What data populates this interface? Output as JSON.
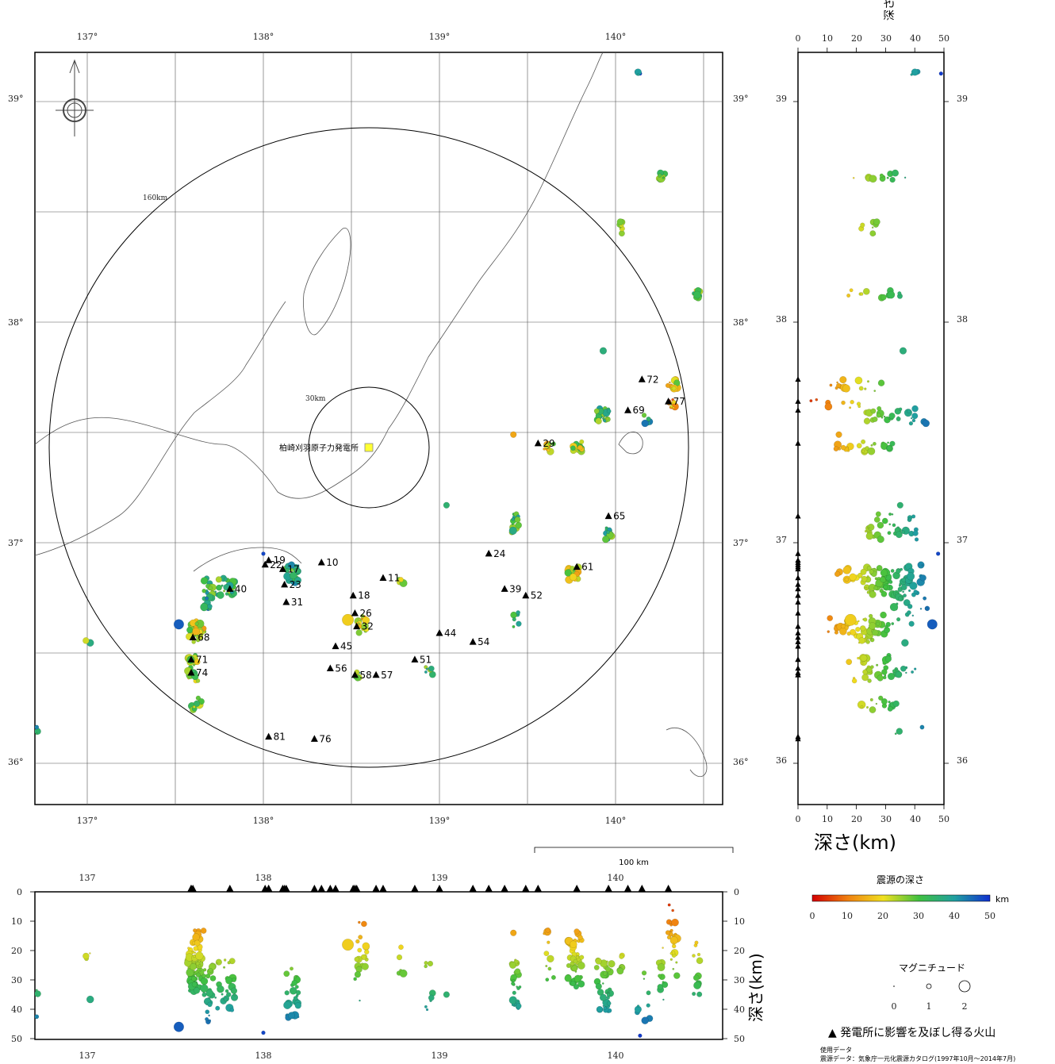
{
  "map": {
    "lon_ticks": [
      "137°",
      "138°",
      "139°",
      "140°"
    ],
    "lat_ticks": [
      "36°",
      "37°",
      "38°",
      "39°"
    ],
    "radius_outer_label": "160km",
    "radius_inner_label": "30km",
    "plant_label": "柏崎刈羽原子力発電所",
    "scale_label": "100 km",
    "volcanoes": [
      {
        "id": "19",
        "lon": 138.03,
        "lat": 36.92
      },
      {
        "id": "22",
        "lon": 138.01,
        "lat": 36.9
      },
      {
        "id": "17",
        "lon": 138.11,
        "lat": 36.88
      },
      {
        "id": "23",
        "lon": 138.12,
        "lat": 36.81
      },
      {
        "id": "10",
        "lon": 138.33,
        "lat": 36.91
      },
      {
        "id": "40",
        "lon": 137.81,
        "lat": 36.79
      },
      {
        "id": "31",
        "lon": 138.13,
        "lat": 36.73
      },
      {
        "id": "11",
        "lon": 138.68,
        "lat": 36.84
      },
      {
        "id": "18",
        "lon": 138.51,
        "lat": 36.76
      },
      {
        "id": "26",
        "lon": 138.52,
        "lat": 36.68
      },
      {
        "id": "32",
        "lon": 138.53,
        "lat": 36.62
      },
      {
        "id": "45",
        "lon": 138.41,
        "lat": 36.53
      },
      {
        "id": "44",
        "lon": 139.0,
        "lat": 36.59
      },
      {
        "id": "54",
        "lon": 139.19,
        "lat": 36.55
      },
      {
        "id": "51",
        "lon": 138.86,
        "lat": 36.47
      },
      {
        "id": "56",
        "lon": 138.38,
        "lat": 36.43
      },
      {
        "id": "58",
        "lon": 138.52,
        "lat": 36.4
      },
      {
        "id": "57",
        "lon": 138.64,
        "lat": 36.4
      },
      {
        "id": "68",
        "lon": 137.6,
        "lat": 36.57
      },
      {
        "id": "71",
        "lon": 137.59,
        "lat": 36.47
      },
      {
        "id": "74",
        "lon": 137.59,
        "lat": 36.41
      },
      {
        "id": "81",
        "lon": 138.03,
        "lat": 36.12
      },
      {
        "id": "76",
        "lon": 138.29,
        "lat": 36.11
      },
      {
        "id": "24",
        "lon": 139.28,
        "lat": 36.95
      },
      {
        "id": "39",
        "lon": 139.37,
        "lat": 36.79
      },
      {
        "id": "52",
        "lon": 139.49,
        "lat": 36.76
      },
      {
        "id": "61",
        "lon": 139.78,
        "lat": 36.89
      },
      {
        "id": "65",
        "lon": 139.96,
        "lat": 37.12
      },
      {
        "id": "29",
        "lon": 139.56,
        "lat": 37.45
      },
      {
        "id": "69",
        "lon": 140.07,
        "lat": 37.6
      },
      {
        "id": "72",
        "lon": 140.15,
        "lat": 37.74
      },
      {
        "id": "77",
        "lon": 140.3,
        "lat": 37.64
      }
    ],
    "clusters": [
      {
        "lon": 137.62,
        "lat": 36.6,
        "depth": 22,
        "n": 40,
        "rx": 0.05,
        "ry": 0.05
      },
      {
        "lon": 137.6,
        "lat": 36.43,
        "depth": 26,
        "n": 25,
        "rx": 0.03,
        "ry": 0.06
      },
      {
        "lon": 137.62,
        "lat": 36.27,
        "depth": 30,
        "n": 14,
        "rx": 0.03,
        "ry": 0.03
      },
      {
        "lon": 137.75,
        "lat": 36.8,
        "depth": 32,
        "n": 40,
        "rx": 0.09,
        "ry": 0.04
      },
      {
        "lon": 137.69,
        "lat": 36.73,
        "depth": 36,
        "n": 12,
        "rx": 0.03,
        "ry": 0.03
      },
      {
        "lon": 138.16,
        "lat": 36.86,
        "depth": 35,
        "n": 25,
        "rx": 0.04,
        "ry": 0.04
      },
      {
        "lon": 138.56,
        "lat": 36.63,
        "depth": 18,
        "n": 18,
        "rx": 0.03,
        "ry": 0.04
      },
      {
        "lon": 138.54,
        "lat": 36.4,
        "depth": 30,
        "n": 6,
        "rx": 0.02,
        "ry": 0.02
      },
      {
        "lon": 138.78,
        "lat": 36.83,
        "depth": 26,
        "n": 5,
        "rx": 0.02,
        "ry": 0.02
      },
      {
        "lon": 138.95,
        "lat": 36.42,
        "depth": 33,
        "n": 8,
        "rx": 0.03,
        "ry": 0.02
      },
      {
        "lon": 139.43,
        "lat": 37.09,
        "depth": 32,
        "n": 20,
        "rx": 0.02,
        "ry": 0.05
      },
      {
        "lon": 139.44,
        "lat": 36.65,
        "depth": 36,
        "n": 8,
        "rx": 0.02,
        "ry": 0.04
      },
      {
        "lon": 139.76,
        "lat": 36.86,
        "depth": 22,
        "n": 25,
        "rx": 0.03,
        "ry": 0.03
      },
      {
        "lon": 139.96,
        "lat": 37.04,
        "depth": 33,
        "n": 15,
        "rx": 0.02,
        "ry": 0.03
      },
      {
        "lon": 139.62,
        "lat": 37.43,
        "depth": 22,
        "n": 10,
        "rx": 0.03,
        "ry": 0.02
      },
      {
        "lon": 139.78,
        "lat": 37.44,
        "depth": 24,
        "n": 15,
        "rx": 0.03,
        "ry": 0.03
      },
      {
        "lon": 139.93,
        "lat": 37.58,
        "depth": 32,
        "n": 25,
        "rx": 0.04,
        "ry": 0.03
      },
      {
        "lon": 140.18,
        "lat": 37.56,
        "depth": 36,
        "n": 6,
        "rx": 0.02,
        "ry": 0.02
      },
      {
        "lon": 140.32,
        "lat": 37.71,
        "depth": 20,
        "n": 15,
        "rx": 0.03,
        "ry": 0.03
      },
      {
        "lon": 140.32,
        "lat": 37.63,
        "depth": 12,
        "n": 10,
        "rx": 0.02,
        "ry": 0.02
      },
      {
        "lon": 140.03,
        "lat": 38.43,
        "depth": 22,
        "n": 8,
        "rx": 0.01,
        "ry": 0.03
      },
      {
        "lon": 140.46,
        "lat": 38.13,
        "depth": 26,
        "n": 12,
        "rx": 0.02,
        "ry": 0.02
      },
      {
        "lon": 140.26,
        "lat": 38.66,
        "depth": 28,
        "n": 12,
        "rx": 0.02,
        "ry": 0.02
      },
      {
        "lon": 140.13,
        "lat": 39.13,
        "depth": 45,
        "n": 5,
        "rx": 0.01,
        "ry": 0.01
      },
      {
        "lon": 137.0,
        "lat": 36.55,
        "depth": 28,
        "n": 4,
        "rx": 0.02,
        "ry": 0.01
      },
      {
        "lon": 136.72,
        "lat": 36.15,
        "depth": 38,
        "n": 3,
        "rx": 0.01,
        "ry": 0.02
      }
    ],
    "singles": [
      {
        "lon": 137.52,
        "lat": 36.63,
        "depth": 46,
        "mag": 2.2
      },
      {
        "lon": 139.04,
        "lat": 37.17,
        "depth": 35,
        "mag": 1.2
      },
      {
        "lon": 139.42,
        "lat": 37.49,
        "depth": 14,
        "mag": 1.2
      },
      {
        "lon": 139.93,
        "lat": 37.87,
        "depth": 36,
        "mag": 1.4
      },
      {
        "lon": 138.48,
        "lat": 36.65,
        "depth": 18,
        "mag": 2.6
      },
      {
        "lon": 138.0,
        "lat": 36.95,
        "depth": 48,
        "mag": 0.6
      }
    ]
  },
  "ew_section": {
    "lon_ticks": [
      "137",
      "138",
      "139",
      "140"
    ],
    "depth_ticks": [
      "0",
      "10",
      "20",
      "30",
      "40",
      "50"
    ],
    "ylabel": "深さ(km)"
  },
  "ns_section": {
    "depth_ticks": [
      "0",
      "10",
      "20",
      "30",
      "40",
      "50"
    ],
    "lat_ticks": [
      "36",
      "37",
      "38",
      "39"
    ],
    "xlabel_top": "深さ(km)",
    "xlabel_bottom": "深さ(km)"
  },
  "legend": {
    "depth_title": "震源の深さ",
    "depth_ticks": [
      "0",
      "10",
      "20",
      "30",
      "40",
      "50"
    ],
    "depth_unit": "km",
    "mag_title": "マグニチュード",
    "mag_ticks": [
      "0",
      "1",
      "2"
    ],
    "volcano_label": "▲ 発電所に影響を及ぼし得る火山",
    "source_title": "使用データ",
    "source_text": "震源データ：気象庁一元化震源カタログ(1997年10月～2014年7月)"
  }
}
